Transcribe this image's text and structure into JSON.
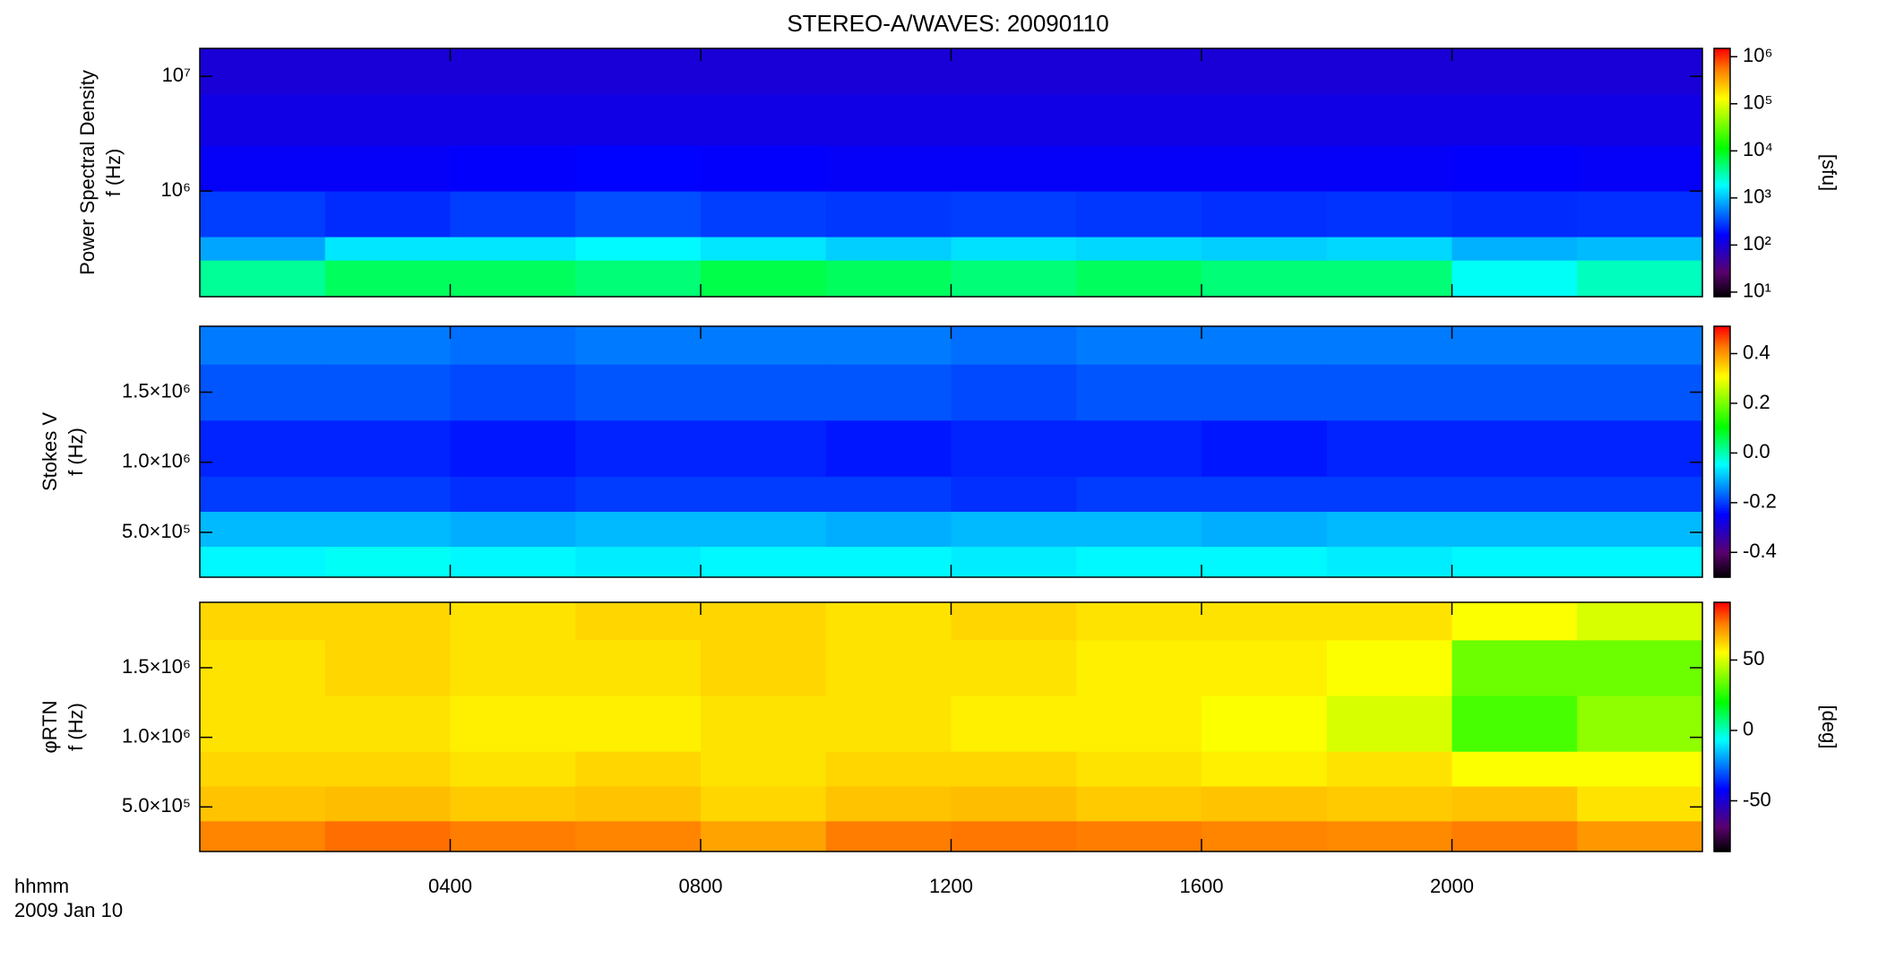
{
  "title": "STEREO-A/WAVES: 20090110",
  "x_axis": {
    "labels": [
      "hhmm",
      "2009 Jan 10"
    ],
    "xlim": [
      0,
      24
    ],
    "xticks": [
      {
        "value": 4,
        "label": "0400"
      },
      {
        "value": 8,
        "label": "0800"
      },
      {
        "value": 12,
        "label": "1200"
      },
      {
        "value": 16,
        "label": "1600"
      },
      {
        "value": 20,
        "label": "2000"
      }
    ]
  },
  "chart_data": [
    {
      "type": "heatmap",
      "ylabel": [
        "Power Spectral Density",
        "f (Hz)"
      ],
      "log_y": true,
      "ylim": [
        120000,
        17500000
      ],
      "yticks": [
        {
          "value": 1000000,
          "label": "10⁶"
        },
        {
          "value": 10000000,
          "label": "10⁷"
        }
      ],
      "x": [
        0,
        2,
        4,
        6,
        8,
        10,
        12,
        14,
        16,
        18,
        20,
        22,
        24
      ],
      "y": [
        120000,
        250000,
        400000,
        1000000,
        2500000,
        7000000,
        17500000
      ],
      "values": [
        [
          4000,
          6000,
          6000,
          5000,
          7000,
          6000,
          5000,
          6000,
          5000,
          5000,
          2000,
          3000
        ],
        [
          800,
          1500,
          1500,
          1800,
          1500,
          1200,
          1400,
          1300,
          1200,
          1300,
          900,
          1000
        ],
        [
          300,
          250,
          300,
          350,
          300,
          280,
          300,
          280,
          260,
          270,
          250,
          260
        ],
        [
          150,
          150,
          160,
          170,
          160,
          150,
          150,
          150,
          150,
          150,
          160,
          150
        ],
        [
          120,
          120,
          120,
          120,
          120,
          120,
          120,
          120,
          120,
          120,
          120,
          120
        ],
        [
          100,
          100,
          100,
          100,
          100,
          100,
          100,
          100,
          100,
          100,
          100,
          100
        ]
      ],
      "colorbar": {
        "label": "[sfu]",
        "log": true,
        "lim": [
          8,
          1500000
        ],
        "ticks": [
          {
            "value": 10,
            "label": "10¹"
          },
          {
            "value": 100,
            "label": "10²"
          },
          {
            "value": 1000,
            "label": "10³"
          },
          {
            "value": 10000,
            "label": "10⁴"
          },
          {
            "value": 100000,
            "label": "10⁵"
          },
          {
            "value": 1000000,
            "label": "10⁶"
          }
        ]
      }
    },
    {
      "type": "heatmap",
      "ylabel": [
        "Stokes V",
        "f (Hz)"
      ],
      "log_y": false,
      "ylim": [
        180000,
        1970000
      ],
      "yticks": [
        {
          "value": 500000,
          "label": "5.0×10⁵"
        },
        {
          "value": 1000000,
          "label": "1.0×10⁶"
        },
        {
          "value": 1500000,
          "label": "1.5×10⁶"
        }
      ],
      "x": [
        0,
        2,
        4,
        6,
        8,
        10,
        12,
        14,
        16,
        18,
        20,
        22,
        24
      ],
      "y": [
        180000,
        400000,
        650000,
        900000,
        1300000,
        1700000,
        1970000
      ],
      "values": [
        [
          -0.05,
          -0.04,
          -0.05,
          -0.06,
          -0.05,
          -0.05,
          -0.06,
          -0.05,
          -0.05,
          -0.06,
          -0.05,
          -0.05
        ],
        [
          -0.1,
          -0.1,
          -0.11,
          -0.1,
          -0.1,
          -0.11,
          -0.1,
          -0.1,
          -0.11,
          -0.1,
          -0.1,
          -0.1
        ],
        [
          -0.2,
          -0.2,
          -0.21,
          -0.2,
          -0.2,
          -0.2,
          -0.21,
          -0.2,
          -0.2,
          -0.2,
          -0.2,
          -0.2
        ],
        [
          -0.22,
          -0.22,
          -0.23,
          -0.22,
          -0.22,
          -0.23,
          -0.22,
          -0.22,
          -0.23,
          -0.22,
          -0.22,
          -0.22
        ],
        [
          -0.18,
          -0.18,
          -0.19,
          -0.18,
          -0.18,
          -0.18,
          -0.19,
          -0.18,
          -0.18,
          -0.18,
          -0.18,
          -0.18
        ],
        [
          -0.15,
          -0.15,
          -0.16,
          -0.15,
          -0.15,
          -0.15,
          -0.16,
          -0.15,
          -0.15,
          -0.15,
          -0.15,
          -0.15
        ]
      ],
      "colorbar": {
        "log": false,
        "lim": [
          -0.5,
          0.51
        ],
        "ticks": [
          -0.4,
          -0.2,
          {
            "value": 0,
            "label": "0.0"
          },
          0.2,
          0.4
        ]
      }
    },
    {
      "type": "heatmap",
      "ylabel": [
        "φRTN",
        "f (Hz)"
      ],
      "log_y": false,
      "ylim": [
        180000,
        1970000
      ],
      "yticks": [
        {
          "value": 500000,
          "label": "5.0×10⁵"
        },
        {
          "value": 1000000,
          "label": "1.0×10⁶"
        },
        {
          "value": 1500000,
          "label": "1.5×10⁶"
        }
      ],
      "x": [
        0,
        2,
        4,
        6,
        8,
        10,
        12,
        14,
        16,
        18,
        20,
        22,
        24
      ],
      "y": [
        180000,
        400000,
        650000,
        900000,
        1300000,
        1700000,
        1970000
      ],
      "values": [
        [
          75,
          78,
          76,
          75,
          70,
          76,
          77,
          76,
          75,
          74,
          76,
          72
        ],
        [
          65,
          66,
          64,
          65,
          62,
          65,
          66,
          64,
          65,
          64,
          65,
          60
        ],
        [
          62,
          62,
          60,
          62,
          60,
          62,
          62,
          60,
          58,
          60,
          55,
          55
        ],
        [
          60,
          60,
          58,
          58,
          60,
          60,
          58,
          58,
          55,
          50,
          30,
          40
        ],
        [
          60,
          62,
          60,
          60,
          62,
          60,
          60,
          58,
          58,
          55,
          35,
          35
        ],
        [
          62,
          62,
          60,
          62,
          62,
          60,
          62,
          60,
          60,
          60,
          55,
          50
        ]
      ],
      "colorbar": {
        "label": "[deg]",
        "log": false,
        "lim": [
          -86,
          91
        ],
        "ticks": [
          -50,
          0,
          50
        ]
      }
    }
  ]
}
